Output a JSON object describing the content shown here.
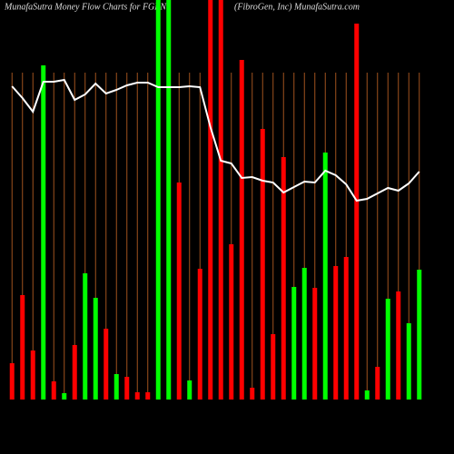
{
  "chart_data": {
    "type": "bar",
    "title": "MunafaSutra  Money Flow  Charts for FGEN",
    "subtitle": "(FibroGen, Inc) MunafaSutra.com",
    "categories": [
      null,
      null,
      null,
      null,
      null,
      null,
      null,
      null,
      null,
      null,
      null,
      null,
      null,
      null,
      null,
      null,
      null,
      null,
      null,
      null,
      null,
      null,
      null,
      null,
      null,
      null,
      null,
      null,
      null,
      null,
      null,
      null,
      null,
      null,
      null,
      null,
      null,
      null,
      null,
      null
    ],
    "values": [
      40,
      115,
      54,
      368,
      20,
      7,
      60,
      139,
      112,
      78,
      28,
      25,
      8,
      8,
      440,
      440,
      239,
      21,
      144,
      440,
      440,
      171,
      374,
      13,
      298,
      72,
      267,
      124,
      145,
      123,
      272,
      147,
      157,
      414,
      10,
      36,
      111,
      119,
      84,
      143
    ],
    "colors": [
      "#ff0000",
      "#ff0000",
      "#ff0000",
      "#00ff00",
      "#ff0000",
      "#00ff00",
      "#ff0000",
      "#00ff00",
      "#00ff00",
      "#ff0000",
      "#00ff00",
      "#ff0000",
      "#ff0000",
      "#ff0000",
      "#00ff00",
      "#00ff00",
      "#ff0000",
      "#00ff00",
      "#ff0000",
      "#ff0000",
      "#ff0000",
      "#ff0000",
      "#ff0000",
      "#ff0000",
      "#ff0000",
      "#ff0000",
      "#ff0000",
      "#00ff00",
      "#00ff00",
      "#ff0000",
      "#00ff00",
      "#ff0000",
      "#ff0000",
      "#ff0000",
      "#00ff00",
      "#ff0000",
      "#00ff00",
      "#ff0000",
      "#00ff00",
      "#00ff00"
    ],
    "line": {
      "color": "#ffffff",
      "values": [
        345,
        332,
        317,
        350,
        350,
        352,
        330,
        336,
        348,
        337,
        341,
        346,
        349,
        349,
        344,
        344,
        344,
        345,
        344,
        300,
        263,
        260,
        244,
        245,
        241,
        239,
        228,
        234,
        240,
        239,
        252,
        247,
        237,
        219,
        221,
        227,
        233,
        230,
        238,
        251
      ]
    },
    "ylim": [
      0,
      440
    ],
    "grid": true,
    "grid_color": "#a0521e",
    "background": "#000000"
  }
}
